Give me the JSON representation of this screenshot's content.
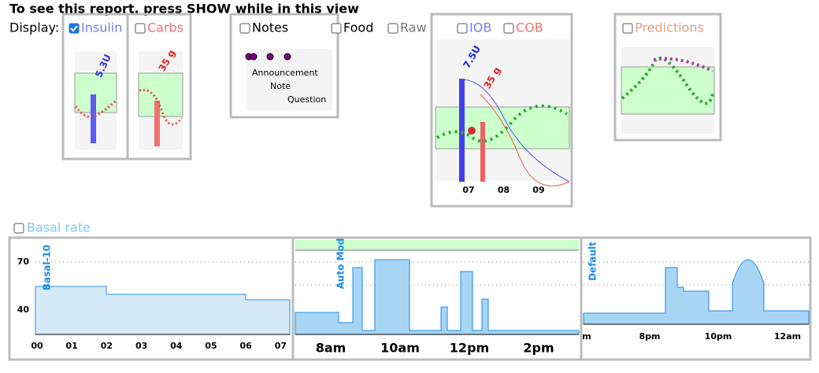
{
  "header": {
    "title": "To see this report, press SHOW while in this view"
  },
  "display": {
    "label": "Display:",
    "options": [
      {
        "label": "Insulin",
        "checked": true,
        "color": "#7b7be8"
      },
      {
        "label": "Carbs",
        "checked": false,
        "color": "#f07070"
      },
      {
        "label": "Notes",
        "checked": false,
        "color": "#000000"
      },
      {
        "label": "Food",
        "checked": false,
        "color": "#000000"
      },
      {
        "label": "Raw",
        "checked": false,
        "color": "#777777"
      },
      {
        "label": "IOB",
        "checked": false,
        "color": "#7b7be8"
      },
      {
        "label": "COB",
        "checked": false,
        "color": "#f07070"
      },
      {
        "label": "Predictions",
        "checked": false,
        "color": "#e0a080"
      }
    ]
  },
  "thumbnails": {
    "insulin": {
      "label": "5.3U"
    },
    "carbs": {
      "label": "35 g"
    },
    "notes": {
      "items": [
        "Announcement",
        "Note",
        "Question"
      ]
    },
    "iob_cob": {
      "insulin_label": "7.5U",
      "carbs_label": "35 g",
      "x_labels": [
        "07",
        "08",
        "09"
      ]
    }
  },
  "basal": {
    "label": "Basal rate",
    "checked": false,
    "left": {
      "y_labels": [
        "70",
        "40"
      ],
      "marker": "Basal-10",
      "x_labels": [
        "00",
        "01",
        "02",
        "03",
        "04",
        "05",
        "06",
        "07"
      ]
    },
    "middle": {
      "marker": "Auto Mod",
      "x_labels": [
        "8am",
        "10am",
        "12pm",
        "2pm"
      ]
    },
    "right": {
      "marker": "Default",
      "x_labels": [
        "m",
        "8pm",
        "10pm",
        "12am"
      ]
    }
  }
}
